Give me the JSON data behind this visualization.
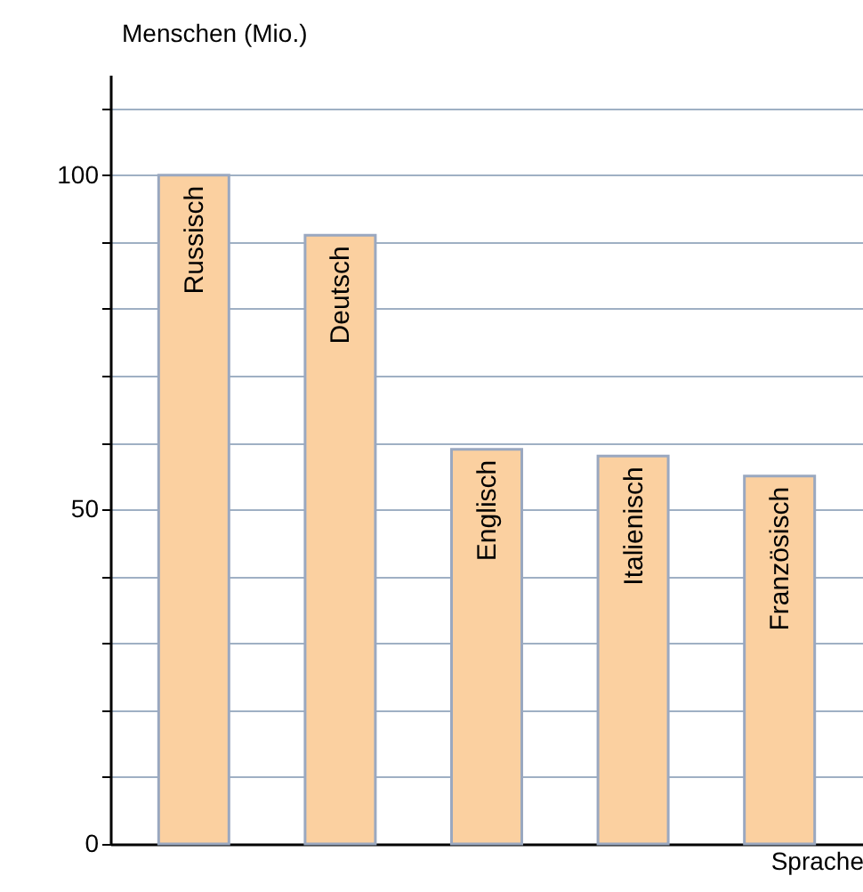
{
  "chart_data": {
    "type": "bar",
    "xlabel": "Sprache",
    "ylabel": "Menschen (Mio.)",
    "categories": [
      "Russisch",
      "Deutsch",
      "Englisch",
      "Italienisch",
      "Französisch"
    ],
    "values": [
      100,
      91,
      59,
      58,
      55
    ],
    "color": "#fbd0a0",
    "ylim": [
      0,
      115
    ],
    "yticks": [
      0,
      {
        "value": 10,
        "label": null
      },
      {
        "value": 20,
        "label": null
      },
      {
        "value": 30,
        "label": null
      },
      {
        "value": 40,
        "label": null
      },
      50,
      {
        "value": 60,
        "label": null
      },
      {
        "value": 70,
        "label": null
      },
      {
        "value": 80,
        "label": null
      },
      {
        "value": 90,
        "label": null
      },
      100,
      {
        "value": 110,
        "label": null
      }
    ],
    "grid": "y"
  }
}
